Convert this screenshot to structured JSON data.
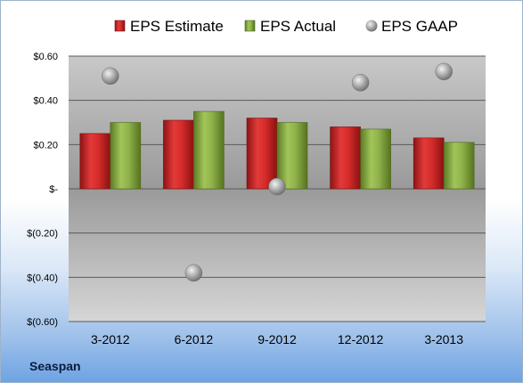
{
  "company_label": "Seaspan",
  "colors": {
    "estimate": "#d52b2b",
    "actual": "#8fb24a",
    "gaap": "#a9a9a9"
  },
  "chart_data": {
    "type": "bar",
    "categories": [
      "3-2012",
      "6-2012",
      "9-2012",
      "12-2012",
      "3-2013"
    ],
    "series": [
      {
        "name": "EPS Estimate",
        "kind": "bar",
        "values": [
          0.25,
          0.31,
          0.32,
          0.28,
          0.23
        ]
      },
      {
        "name": "EPS Actual",
        "kind": "bar",
        "values": [
          0.3,
          0.35,
          0.3,
          0.27,
          0.21
        ]
      },
      {
        "name": "EPS GAAP",
        "kind": "scatter",
        "values": [
          0.51,
          -0.38,
          0.01,
          0.48,
          0.53
        ]
      }
    ],
    "ylim": [
      -0.6,
      0.6
    ],
    "yticks": [
      0.6,
      0.4,
      0.2,
      0,
      -0.2,
      -0.4,
      -0.6
    ],
    "ytick_labels": [
      "$0.60",
      "$0.40",
      "$0.20",
      "$-",
      "$(0.20)",
      "$(0.40)",
      "$(0.60)"
    ],
    "legend_position": "top",
    "grid": true
  }
}
